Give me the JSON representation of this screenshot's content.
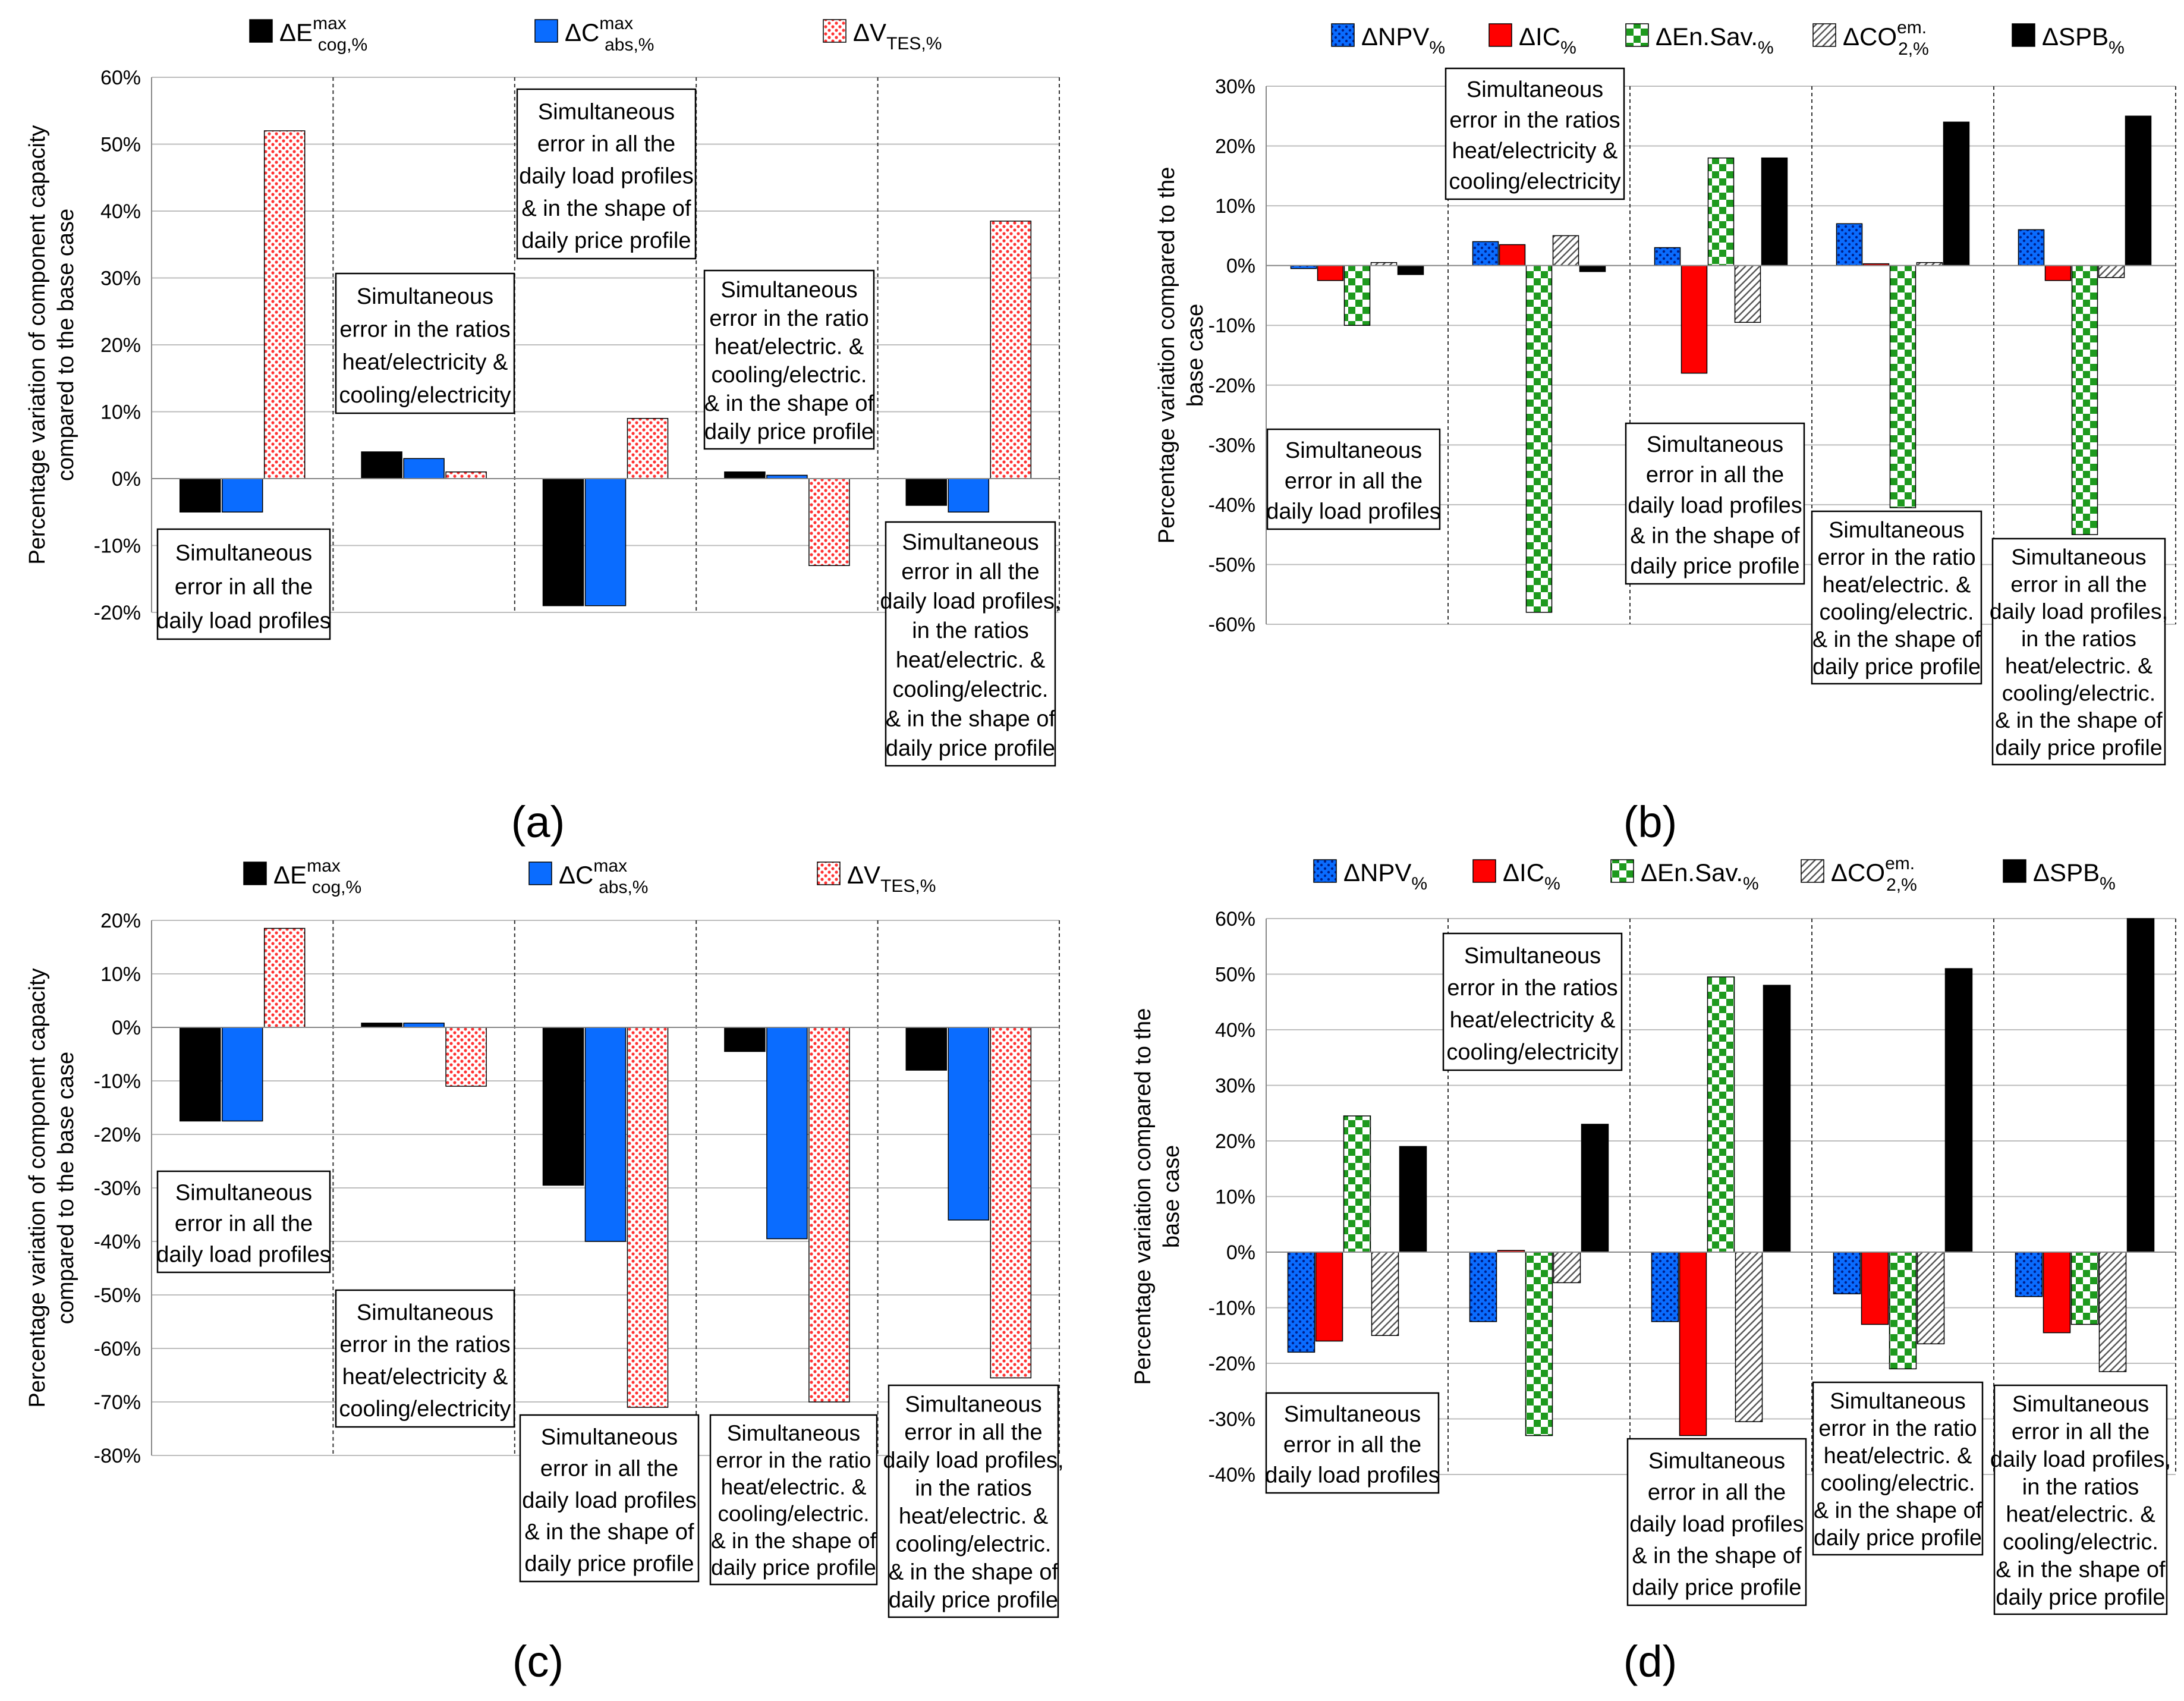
{
  "panel_letters": [
    "(a)",
    "(b)",
    "(c)",
    "(d)"
  ],
  "colors": {
    "black": "#000000",
    "blue": "#0a6cff",
    "red": "#ff0000",
    "red_hatch": "#ff4d4d",
    "green": "#1e9a1e",
    "gray": "#666666"
  },
  "chart_data": [
    {
      "type": "bar",
      "panel": "(a)",
      "ylabel": "Percentage variation of component capacity compared to the base case",
      "ylim": [
        -20,
        60
      ],
      "yticks": [
        "-20%",
        "-10%",
        "0%",
        "10%",
        "20%",
        "30%",
        "40%",
        "50%",
        "60%"
      ],
      "legend": [
        {
          "base": "ΔE",
          "sup": "max",
          "sub": "cog,%",
          "pattern": "solid-black"
        },
        {
          "base": "ΔC",
          "sup": "max",
          "sub": "abs,%",
          "pattern": "solid-blue"
        },
        {
          "base": "ΔV",
          "sup": "",
          "sub": "TES,%",
          "pattern": "dots-red"
        }
      ],
      "categories": [
        "Simultaneous error in all the daily load profiles",
        "Simultaneous error in the ratios heat/electricity & cooling/electricity",
        "Simultaneous error in all the daily load profiles & in the shape of daily price profile",
        "Simultaneous error in the ratio heat/electric. & cooling/electric. & in the shape of daily price profile",
        "Simultaneous error in all the daily load profiles, in the ratios heat/electric. & cooling/electric. & in the shape of daily price profile"
      ],
      "series": [
        {
          "name": "ΔE cog",
          "values": [
            -5,
            4,
            -19,
            1,
            -4
          ]
        },
        {
          "name": "ΔC abs",
          "values": [
            -5,
            3,
            -19,
            0.5,
            -5
          ]
        },
        {
          "name": "ΔV TES",
          "values": [
            52,
            1,
            9,
            -13,
            38.5
          ]
        }
      ],
      "annotations": [
        {
          "group": 0,
          "lines": [
            "Simultaneous",
            "error in all the",
            "daily load profiles"
          ]
        },
        {
          "group": 1,
          "lines": [
            "Simultaneous",
            "error in the ratios",
            "heat/electricity &",
            "cooling/electricity"
          ]
        },
        {
          "group": 2,
          "lines": [
            "Simultaneous",
            "error in all the",
            "daily load profiles",
            "& in the shape of",
            "daily price profile"
          ]
        },
        {
          "group": 3,
          "lines": [
            "Simultaneous",
            "error in the ratio",
            "heat/electric. &",
            "cooling/electric.",
            "& in the shape of",
            "daily price profile"
          ]
        },
        {
          "group": 4,
          "lines": [
            "Simultaneous",
            "error in all the",
            "daily load profiles,",
            "in the ratios",
            "heat/electric. &",
            "cooling/electric.",
            "& in the shape of",
            "daily price profile"
          ]
        }
      ]
    },
    {
      "type": "bar",
      "panel": "(b)",
      "ylabel": "Percentage variation compared to the base case",
      "ylim": [
        -60,
        30
      ],
      "yticks": [
        "-60%",
        "-50%",
        "-40%",
        "-30%",
        "-20%",
        "-10%",
        "0%",
        "10%",
        "20%",
        "30%"
      ],
      "legend": [
        {
          "base": "ΔNPV",
          "sup": "",
          "sub": "%",
          "pattern": "dots-blue"
        },
        {
          "base": "ΔIC",
          "sup": "",
          "sub": "%",
          "pattern": "solid-red"
        },
        {
          "base": "ΔEn.Sav.",
          "sup": "",
          "sub": "%",
          "pattern": "check-green"
        },
        {
          "base": "ΔCO",
          "sup": "em.",
          "sub": "2,%",
          "pattern": "hatch-gray"
        },
        {
          "base": "ΔSPB",
          "sup": "",
          "sub": "%",
          "pattern": "solid-black"
        }
      ],
      "series": [
        {
          "name": "ΔNPV",
          "values": [
            -0.5,
            4,
            3,
            7,
            6
          ]
        },
        {
          "name": "ΔIC",
          "values": [
            -2.5,
            3.5,
            -18,
            0.3,
            -2.5
          ]
        },
        {
          "name": "ΔEn.Sav.",
          "values": [
            -10,
            -58,
            18,
            -40.5,
            -45
          ]
        },
        {
          "name": "ΔCO2 em.",
          "values": [
            0.5,
            5,
            -9.5,
            0.5,
            -2
          ]
        },
        {
          "name": "ΔSPB",
          "values": [
            -1.5,
            -1,
            18,
            24,
            25
          ]
        }
      ],
      "annotations": [
        {
          "group": 0,
          "lines": [
            "Simultaneous",
            "error in all the",
            "daily load profiles"
          ]
        },
        {
          "group": 1,
          "lines": [
            "Simultaneous",
            "error in the ratios",
            "heat/electricity &",
            "cooling/electricity"
          ]
        },
        {
          "group": 2,
          "lines": [
            "Simultaneous",
            "error in all the",
            "daily load profiles",
            "& in the shape of",
            "daily price profile"
          ]
        },
        {
          "group": 3,
          "lines": [
            "Simultaneous",
            "error in the ratio",
            "heat/electric. &",
            "cooling/electric.",
            "& in the shape of",
            "daily price profile"
          ]
        },
        {
          "group": 4,
          "lines": [
            "Simultaneous",
            "error in all the",
            "daily load profiles,",
            "in the ratios",
            "heat/electric. &",
            "cooling/electric.",
            "& in the shape of",
            "daily price profile"
          ]
        }
      ]
    },
    {
      "type": "bar",
      "panel": "(c)",
      "ylabel": "Percentage variation of component capacity compared to the base case",
      "ylim": [
        -80,
        20
      ],
      "yticks": [
        "-80%",
        "-70%",
        "-60%",
        "-50%",
        "-40%",
        "-30%",
        "-20%",
        "-10%",
        "0%",
        "10%",
        "20%"
      ],
      "legend": [
        {
          "base": "ΔE",
          "sup": "max",
          "sub": "cog,%",
          "pattern": "solid-black"
        },
        {
          "base": "ΔC",
          "sup": "max",
          "sub": "abs,%",
          "pattern": "solid-blue"
        },
        {
          "base": "ΔV",
          "sup": "",
          "sub": "TES,%",
          "pattern": "dots-red"
        }
      ],
      "series": [
        {
          "name": "ΔE cog",
          "values": [
            -17.5,
            0.8,
            -29.5,
            -4.5,
            -8
          ]
        },
        {
          "name": "ΔC abs",
          "values": [
            -17.5,
            0.8,
            -40,
            -39.5,
            -36
          ]
        },
        {
          "name": "ΔV TES",
          "values": [
            18.5,
            -11,
            -71,
            -70,
            -65.5
          ]
        }
      ],
      "annotations": [
        {
          "group": 0,
          "lines": [
            "Simultaneous",
            "error in all the",
            "daily load profiles"
          ]
        },
        {
          "group": 1,
          "lines": [
            "Simultaneous",
            "error in the ratios",
            "heat/electricity &",
            "cooling/electricity"
          ]
        },
        {
          "group": 2,
          "lines": [
            "Simultaneous",
            "error in all the",
            "daily load profiles",
            "& in the shape of",
            "daily price profile"
          ]
        },
        {
          "group": 3,
          "lines": [
            "Simultaneous",
            "error in the ratio",
            "heat/electric. &",
            "cooling/electric.",
            "& in the shape of",
            "daily price profile"
          ]
        },
        {
          "group": 4,
          "lines": [
            "Simultaneous",
            "error in all the",
            "daily load profiles,",
            "in the ratios",
            "heat/electric. &",
            "cooling/electric.",
            "& in the shape of",
            "daily price profile"
          ]
        }
      ]
    },
    {
      "type": "bar",
      "panel": "(d)",
      "ylabel": "Percentage variation compared to the base case",
      "ylim": [
        -40,
        60
      ],
      "yticks": [
        "-40%",
        "-30%",
        "-20%",
        "-10%",
        "0%",
        "10%",
        "20%",
        "30%",
        "40%",
        "50%",
        "60%"
      ],
      "legend": [
        {
          "base": "ΔNPV",
          "sup": "",
          "sub": "%",
          "pattern": "dots-blue"
        },
        {
          "base": "ΔIC",
          "sup": "",
          "sub": "%",
          "pattern": "solid-red"
        },
        {
          "base": "ΔEn.Sav.",
          "sup": "",
          "sub": "%",
          "pattern": "check-green"
        },
        {
          "base": "ΔCO",
          "sup": "em.",
          "sub": "2,%",
          "pattern": "hatch-gray"
        },
        {
          "base": "ΔSPB",
          "sup": "",
          "sub": "%",
          "pattern": "solid-black"
        }
      ],
      "series": [
        {
          "name": "ΔNPV",
          "values": [
            -18,
            -12.5,
            -12.5,
            -7.5,
            -8
          ]
        },
        {
          "name": "ΔIC",
          "values": [
            -16,
            0.3,
            -33,
            -13,
            -14.5
          ]
        },
        {
          "name": "ΔEn.Sav.",
          "values": [
            24.5,
            -33,
            49.5,
            -21,
            -13
          ]
        },
        {
          "name": "ΔCO2 em.",
          "values": [
            -15,
            -5.5,
            -30.5,
            -16.5,
            -21.5
          ]
        },
        {
          "name": "ΔSPB",
          "values": [
            19,
            23,
            48,
            51,
            60
          ]
        }
      ],
      "annotations": [
        {
          "group": 0,
          "lines": [
            "Simultaneous",
            "error in all the",
            "daily load profiles"
          ]
        },
        {
          "group": 1,
          "lines": [
            "Simultaneous",
            "error in the ratios",
            "heat/electricity &",
            "cooling/electricity"
          ]
        },
        {
          "group": 2,
          "lines": [
            "Simultaneous",
            "error in all the",
            "daily load profiles",
            "& in the shape of",
            "daily price profile"
          ]
        },
        {
          "group": 3,
          "lines": [
            "Simultaneous",
            "error in the ratio",
            "heat/electric. &",
            "cooling/electric.",
            "& in the shape of",
            "daily price profile"
          ]
        },
        {
          "group": 4,
          "lines": [
            "Simultaneous",
            "error in all the",
            "daily load profiles,",
            "in the ratios",
            "heat/electric. &",
            "cooling/electric.",
            "& in the shape of",
            "daily price profile"
          ]
        }
      ]
    }
  ]
}
